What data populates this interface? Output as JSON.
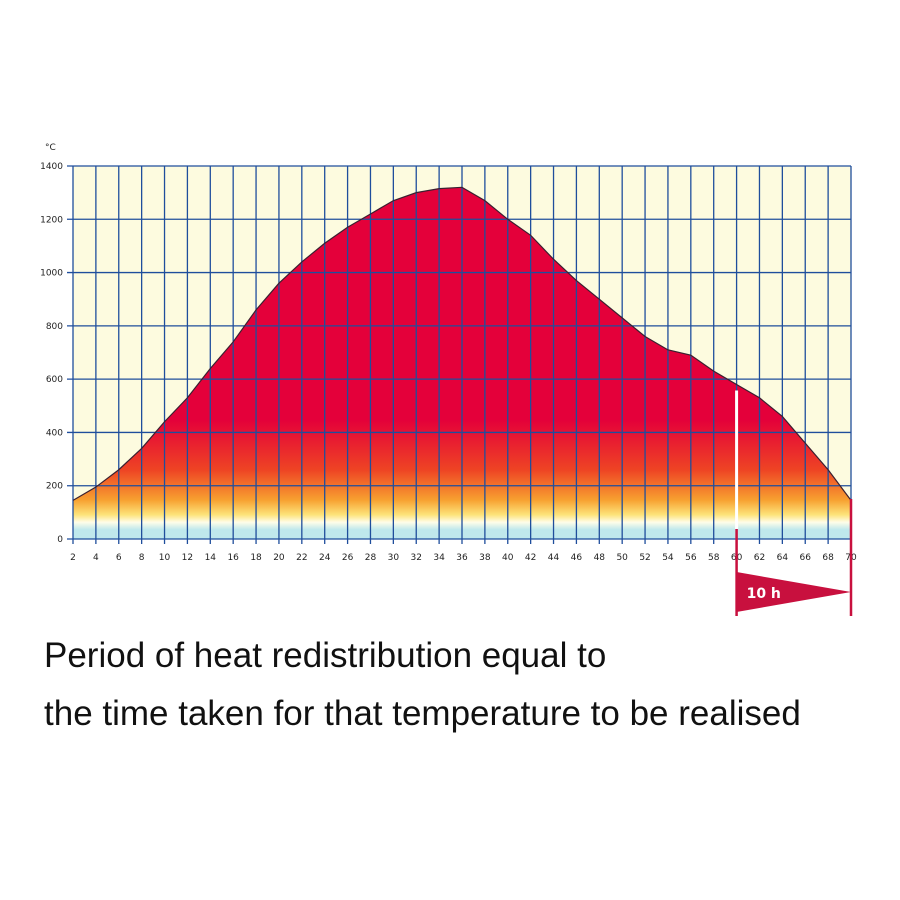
{
  "chart_data": {
    "type": "area",
    "y_unit": "°C",
    "x": [
      2,
      4,
      6,
      8,
      10,
      12,
      14,
      16,
      18,
      20,
      22,
      24,
      26,
      28,
      30,
      32,
      34,
      36,
      38,
      40,
      42,
      44,
      46,
      48,
      50,
      52,
      54,
      56,
      58,
      60,
      62,
      64,
      66,
      68,
      70
    ],
    "values": [
      145,
      195,
      260,
      340,
      440,
      530,
      640,
      740,
      860,
      960,
      1040,
      1110,
      1170,
      1220,
      1270,
      1300,
      1315,
      1320,
      1270,
      1200,
      1140,
      1050,
      970,
      900,
      830,
      760,
      710,
      690,
      630,
      580,
      530,
      460,
      360,
      260,
      145
    ],
    "xlim": [
      2,
      70
    ],
    "ylim": [
      0,
      1400
    ],
    "xticks": [
      2,
      4,
      6,
      8,
      10,
      12,
      14,
      16,
      18,
      20,
      22,
      24,
      26,
      28,
      30,
      32,
      34,
      36,
      38,
      40,
      42,
      44,
      46,
      48,
      50,
      52,
      54,
      56,
      58,
      60,
      62,
      64,
      66,
      68,
      70
    ],
    "yticks": [
      0,
      200,
      400,
      600,
      800,
      1000,
      1200,
      1400
    ],
    "grid": true,
    "grid_color": "#1f4e9c",
    "background": "#fdfbdf",
    "line_color": "#3a2030",
    "annotation": {
      "text": "10 h",
      "x_start": 60,
      "x_end": 70,
      "color": "#c8103e"
    },
    "caption_lines": [
      "Period of heat redistribution equal to",
      "the time taken for that temperature to be realised"
    ]
  }
}
